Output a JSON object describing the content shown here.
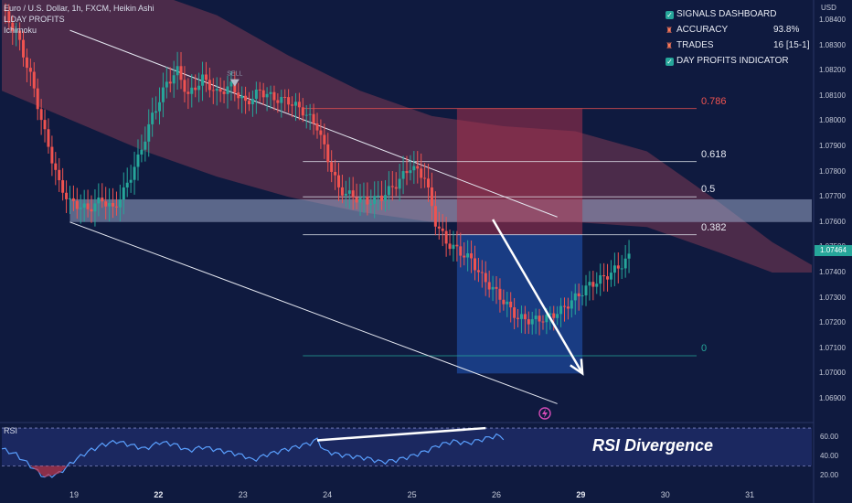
{
  "header": {
    "symbol": "Euro / U.S. Dollar, 1h, FXCM, Heikin Ashi",
    "indicator1": "L.DAY PROFITS",
    "indicator2": "Ichimoku"
  },
  "dashboard": {
    "title": "SIGNALS DASHBOARD",
    "accuracy_label": "ACCURACY",
    "accuracy_value": "93.8%",
    "trades_label": "TRADES",
    "trades_value": "16 [15-1]",
    "profits_label": "DAY PROFITS INDICATOR"
  },
  "signal_label": "SELL",
  "currency": "USD",
  "current_price": "1.07464",
  "rsi_label": "RSI",
  "rsi_annotation": "RSI Divergence",
  "colors": {
    "background": "#0f1a3f",
    "up": "#26a69a",
    "down": "#ef5350",
    "cloud_bear": "#8c3646",
    "short_risk": "#a8324c",
    "short_reward": "#1f4fa8",
    "rsi_line": "#5aa0ff"
  },
  "chart_data": {
    "type": "candlestick",
    "title": "Euro / U.S. Dollar, 1h, FXCM, Heikin Ashi",
    "y_axis": {
      "unit": "USD",
      "ylim": [
        1.0682,
        1.0848
      ],
      "ticks": [
        "1.08400",
        "1.08300",
        "1.08200",
        "1.08100",
        "1.08000",
        "1.07900",
        "1.07800",
        "1.07700",
        "1.07600",
        "1.07500",
        "1.07400",
        "1.07300",
        "1.07200",
        "1.07100",
        "1.07000",
        "1.06900"
      ]
    },
    "x_axis": {
      "ticks": [
        {
          "label": "19",
          "bold": false
        },
        {
          "label": "22",
          "bold": true
        },
        {
          "label": "23",
          "bold": false
        },
        {
          "label": "24",
          "bold": false
        },
        {
          "label": "25",
          "bold": false
        },
        {
          "label": "26",
          "bold": false
        },
        {
          "label": "29",
          "bold": true
        },
        {
          "label": "30",
          "bold": false
        },
        {
          "label": "31",
          "bold": false
        }
      ]
    },
    "price_path": [
      [
        0,
        1.0844
      ],
      [
        4,
        1.0835
      ],
      [
        8,
        1.0818
      ],
      [
        12,
        1.0795
      ],
      [
        16,
        1.0775
      ],
      [
        19,
        1.0768
      ],
      [
        24,
        1.0765
      ],
      [
        28,
        1.0769
      ],
      [
        31,
        1.0765
      ],
      [
        34,
        1.0772
      ],
      [
        38,
        1.0785
      ],
      [
        42,
        1.0802
      ],
      [
        46,
        1.0815
      ],
      [
        49,
        1.082
      ],
      [
        52,
        1.081
      ],
      [
        56,
        1.0817
      ],
      [
        60,
        1.0811
      ],
      [
        64,
        1.0814
      ],
      [
        68,
        1.0807
      ],
      [
        72,
        1.0812
      ],
      [
        76,
        1.0809
      ],
      [
        80,
        1.0808
      ],
      [
        84,
        1.0804
      ],
      [
        88,
        1.0798
      ],
      [
        91,
        1.0785
      ],
      [
        94,
        1.0773
      ],
      [
        98,
        1.077
      ],
      [
        102,
        1.0768
      ],
      [
        106,
        1.077
      ],
      [
        110,
        1.0775
      ],
      [
        114,
        1.0782
      ],
      [
        118,
        1.0778
      ],
      [
        121,
        1.076
      ],
      [
        124,
        1.0752
      ],
      [
        128,
        1.0748
      ],
      [
        131,
        1.0745
      ],
      [
        134,
        1.0738
      ],
      [
        138,
        1.0732
      ],
      [
        141,
        1.0727
      ],
      [
        144,
        1.0722
      ],
      [
        148,
        1.0721
      ],
      [
        152,
        1.0722
      ],
      [
        156,
        1.0725
      ],
      [
        160,
        1.073
      ],
      [
        164,
        1.0735
      ],
      [
        168,
        1.0738
      ],
      [
        172,
        1.0742
      ],
      [
        175,
        1.0746
      ]
    ],
    "ichimoku_cloud_top": [
      [
        0,
        1.0856
      ],
      [
        20,
        1.0856
      ],
      [
        40,
        1.0852
      ],
      [
        60,
        1.0842
      ],
      [
        80,
        1.0826
      ],
      [
        100,
        1.0812
      ],
      [
        120,
        1.0802
      ],
      [
        140,
        1.0798
      ],
      [
        160,
        1.0796
      ],
      [
        180,
        1.0788
      ],
      [
        200,
        1.0768
      ],
      [
        215,
        1.0752
      ],
      [
        226,
        1.0743
      ]
    ],
    "ichimoku_cloud_bottom": [
      [
        0,
        1.0812
      ],
      [
        20,
        1.08
      ],
      [
        40,
        1.0788
      ],
      [
        60,
        1.0778
      ],
      [
        80,
        1.077
      ],
      [
        100,
        1.0764
      ],
      [
        120,
        1.076
      ],
      [
        140,
        1.076
      ],
      [
        160,
        1.076
      ],
      [
        180,
        1.0758
      ],
      [
        200,
        1.0748
      ],
      [
        215,
        1.074
      ],
      [
        226,
        1.074
      ]
    ],
    "channel": {
      "upper": [
        [
          19,
          1.0836
        ],
        [
          155,
          1.0762
        ]
      ],
      "lower": [
        [
          19,
          1.076
        ],
        [
          155,
          1.0688
        ]
      ]
    },
    "zone": {
      "top": 1.0769,
      "bottom": 1.076
    },
    "fibonacci": [
      {
        "label": "0.786",
        "price": 1.0805,
        "color": "#ef5350"
      },
      {
        "label": "0.618",
        "price": 1.0784,
        "color": "#e6e9f2"
      },
      {
        "label": "0.5",
        "price": 1.077,
        "color": "#e6e9f2"
      },
      {
        "label": "0.382",
        "price": 1.0755,
        "color": "#e6e9f2"
      },
      {
        "label": "0",
        "price": 1.0707,
        "color": "#26a69a"
      }
    ],
    "fib_start_index": 84,
    "short_position": {
      "start_index": 127,
      "end_index": 162,
      "stop": 1.0805,
      "entry": 1.0755,
      "target": 1.07
    },
    "signal_index": 65,
    "projection_arrow": [
      [
        137,
        1.0761
      ],
      [
        162,
        1.07
      ]
    ],
    "rsi": {
      "ylim": [
        10,
        72
      ],
      "ticks": [
        "60.00",
        "40.00",
        "20.00"
      ],
      "upper_band": 70,
      "lower_band": 30,
      "values": [
        [
          0,
          48
        ],
        [
          4,
          42
        ],
        [
          8,
          30
        ],
        [
          12,
          18
        ],
        [
          16,
          22
        ],
        [
          20,
          35
        ],
        [
          24,
          45
        ],
        [
          28,
          52
        ],
        [
          32,
          56
        ],
        [
          36,
          52
        ],
        [
          40,
          48
        ],
        [
          44,
          55
        ],
        [
          48,
          53
        ],
        [
          52,
          46
        ],
        [
          56,
          50
        ],
        [
          60,
          47
        ],
        [
          64,
          44
        ],
        [
          68,
          40
        ],
        [
          70,
          36
        ],
        [
          74,
          42
        ],
        [
          78,
          46
        ],
        [
          82,
          50
        ],
        [
          86,
          54
        ],
        [
          88,
          58
        ],
        [
          90,
          46
        ],
        [
          94,
          42
        ],
        [
          98,
          40
        ],
        [
          102,
          38
        ],
        [
          106,
          34
        ],
        [
          110,
          36
        ],
        [
          114,
          40
        ],
        [
          118,
          45
        ],
        [
          122,
          52
        ],
        [
          126,
          56
        ],
        [
          130,
          54
        ],
        [
          134,
          58
        ],
        [
          138,
          62
        ],
        [
          140,
          60
        ]
      ],
      "divergence_line": [
        [
          88,
          57
        ],
        [
          135,
          70
        ]
      ]
    }
  }
}
